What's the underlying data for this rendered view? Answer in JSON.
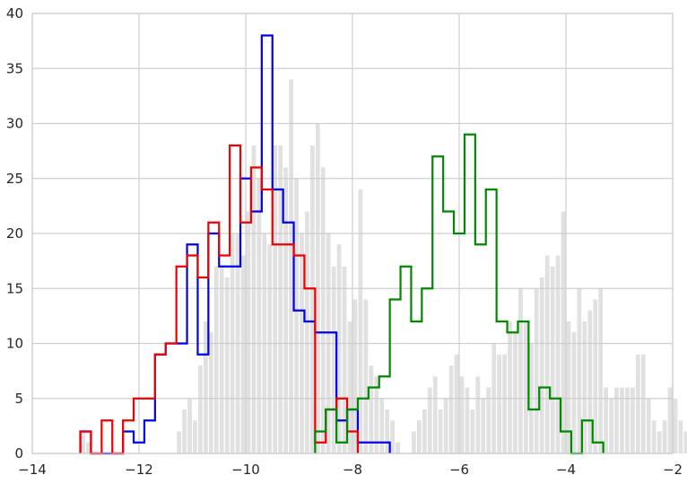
{
  "chart_data": {
    "type": "histogram",
    "xlim": [
      -14,
      -2
    ],
    "ylim": [
      0,
      40
    ],
    "x_ticks": [
      -14,
      -12,
      -10,
      -8,
      -6,
      -4,
      -2
    ],
    "x_tick_labels": [
      "−14",
      "−12",
      "−10",
      "−8",
      "−6",
      "−4",
      "−2"
    ],
    "y_ticks": [
      0,
      5,
      10,
      15,
      20,
      25,
      30,
      35,
      40
    ],
    "y_tick_labels": [
      "0",
      "5",
      "10",
      "15",
      "20",
      "25",
      "30",
      "35",
      "40"
    ],
    "grid": true,
    "background": {
      "color": "#c8c8c8",
      "bin_start": -13.1,
      "bin_width": 0.1,
      "counts": [
        2,
        1,
        0,
        0,
        0,
        0,
        0,
        0,
        0,
        0,
        0,
        0,
        0,
        0,
        0,
        0,
        0,
        0,
        2,
        4,
        5,
        3,
        8,
        12,
        11,
        17,
        17,
        16,
        20,
        20,
        18,
        22,
        28,
        25,
        20,
        19,
        28,
        28,
        26,
        34,
        25,
        20,
        22,
        28,
        30,
        26,
        20,
        17,
        19,
        17,
        12,
        14,
        24,
        14,
        8,
        7,
        5,
        4,
        3,
        1,
        0,
        0,
        2,
        3,
        4,
        6,
        7,
        4,
        5,
        8,
        9,
        7,
        6,
        4,
        7,
        5,
        6,
        10,
        9,
        9,
        12,
        11,
        15,
        12,
        10,
        15,
        16,
        18,
        17,
        18,
        22,
        12,
        11,
        15,
        12,
        13,
        14,
        15,
        6,
        5,
        6,
        6,
        6,
        6,
        9,
        9,
        5,
        3,
        2,
        3,
        6,
        5,
        3,
        2,
        5,
        7,
        3,
        2,
        1
      ]
    },
    "series": [
      {
        "color": "#0000ee",
        "bin_width": 0.2,
        "bins": [
          [
            -13.1,
            2
          ],
          [
            -12.9,
            0
          ],
          [
            -12.7,
            0
          ],
          [
            -12.5,
            0
          ],
          [
            -12.3,
            2
          ],
          [
            -12.1,
            1
          ],
          [
            -11.9,
            3
          ],
          [
            -11.7,
            9
          ],
          [
            -11.5,
            10
          ],
          [
            -11.3,
            10
          ],
          [
            -11.1,
            19
          ],
          [
            -10.9,
            9
          ],
          [
            -10.7,
            20
          ],
          [
            -10.5,
            17
          ],
          [
            -10.3,
            17
          ],
          [
            -10.1,
            25
          ],
          [
            -9.9,
            22
          ],
          [
            -9.7,
            38
          ],
          [
            -9.5,
            24
          ],
          [
            -9.3,
            21
          ],
          [
            -9.1,
            13
          ],
          [
            -8.9,
            12
          ],
          [
            -8.7,
            11
          ],
          [
            -8.5,
            11
          ],
          [
            -8.3,
            3
          ],
          [
            -8.1,
            4
          ],
          [
            -7.9,
            1
          ],
          [
            -7.7,
            1
          ],
          [
            -7.5,
            1
          ]
        ]
      },
      {
        "color": "#ee0000",
        "bin_width": 0.2,
        "bins": [
          [
            -13.1,
            2
          ],
          [
            -12.9,
            0
          ],
          [
            -12.7,
            3
          ],
          [
            -12.5,
            0
          ],
          [
            -12.3,
            3
          ],
          [
            -12.1,
            5
          ],
          [
            -11.9,
            5
          ],
          [
            -11.7,
            9
          ],
          [
            -11.5,
            10
          ],
          [
            -11.3,
            17
          ],
          [
            -11.1,
            18
          ],
          [
            -10.9,
            16
          ],
          [
            -10.7,
            21
          ],
          [
            -10.5,
            18
          ],
          [
            -10.3,
            28
          ],
          [
            -10.1,
            21
          ],
          [
            -9.9,
            26
          ],
          [
            -9.7,
            24
          ],
          [
            -9.5,
            19
          ],
          [
            -9.3,
            19
          ],
          [
            -9.1,
            18
          ],
          [
            -8.9,
            15
          ],
          [
            -8.7,
            1
          ],
          [
            -8.5,
            4
          ],
          [
            -8.3,
            5
          ],
          [
            -8.1,
            2
          ]
        ]
      },
      {
        "color": "#008800",
        "bin_width": 0.2,
        "bins": [
          [
            -8.7,
            2
          ],
          [
            -8.5,
            4
          ],
          [
            -8.3,
            1
          ],
          [
            -8.1,
            4
          ],
          [
            -7.9,
            5
          ],
          [
            -7.7,
            6
          ],
          [
            -7.5,
            7
          ],
          [
            -7.3,
            14
          ],
          [
            -7.1,
            17
          ],
          [
            -6.9,
            12
          ],
          [
            -6.7,
            15
          ],
          [
            -6.5,
            27
          ],
          [
            -6.3,
            22
          ],
          [
            -6.1,
            20
          ],
          [
            -5.9,
            29
          ],
          [
            -5.7,
            19
          ],
          [
            -5.5,
            24
          ],
          [
            -5.3,
            12
          ],
          [
            -5.1,
            11
          ],
          [
            -4.9,
            12
          ],
          [
            -4.7,
            4
          ],
          [
            -4.5,
            6
          ],
          [
            -4.3,
            5
          ],
          [
            -4.1,
            2
          ],
          [
            -3.9,
            0
          ],
          [
            -3.7,
            3
          ],
          [
            -3.5,
            1
          ]
        ]
      }
    ]
  }
}
